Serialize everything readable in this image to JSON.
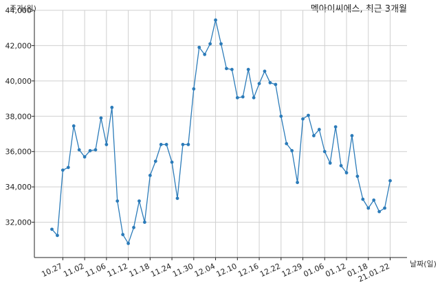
{
  "chart_data": {
    "type": "line",
    "title": "멕아이씨에스, 최근 3개월",
    "ylabel": "주가(원)",
    "xlabel": "날짜(일)",
    "ylim": [
      30000,
      44000
    ],
    "yticks": [
      32000,
      34000,
      36000,
      38000,
      40000,
      42000,
      44000
    ],
    "ytick_labels": [
      "32,000",
      "34,000",
      "36,000",
      "38,000",
      "40,000",
      "42,000",
      "44,000"
    ],
    "xtick_labels": [
      "10.27",
      "11.02",
      "11.06",
      "11.12",
      "11.18",
      "11.24",
      "11.30",
      "12.04",
      "12.10",
      "12.16",
      "12.22",
      "12.29",
      "01.06",
      "01.12",
      "01.18",
      "21.01.22"
    ],
    "xtick_indices": [
      2,
      6,
      10,
      14,
      18,
      22,
      26,
      30,
      34,
      38,
      42,
      46,
      50,
      54,
      58,
      62
    ],
    "grid": true,
    "color": "#2b7bb9",
    "values": [
      31600,
      31250,
      34950,
      35100,
      37450,
      36100,
      35700,
      36050,
      36100,
      37900,
      36400,
      38500,
      33200,
      31300,
      30800,
      31700,
      33200,
      32000,
      34650,
      35450,
      36400,
      36400,
      35400,
      33350,
      36400,
      36400,
      39550,
      41900,
      41500,
      42100,
      43450,
      42100,
      40700,
      40650,
      39050,
      39100,
      40650,
      39050,
      39850,
      40550,
      39900,
      39800,
      38000,
      36450,
      36050,
      34250,
      37850,
      38050,
      36900,
      37250,
      36000,
      35350,
      37400,
      35200,
      34800,
      36900,
      34600,
      33300,
      32800,
      33250,
      32600,
      32800,
      34350
    ]
  }
}
